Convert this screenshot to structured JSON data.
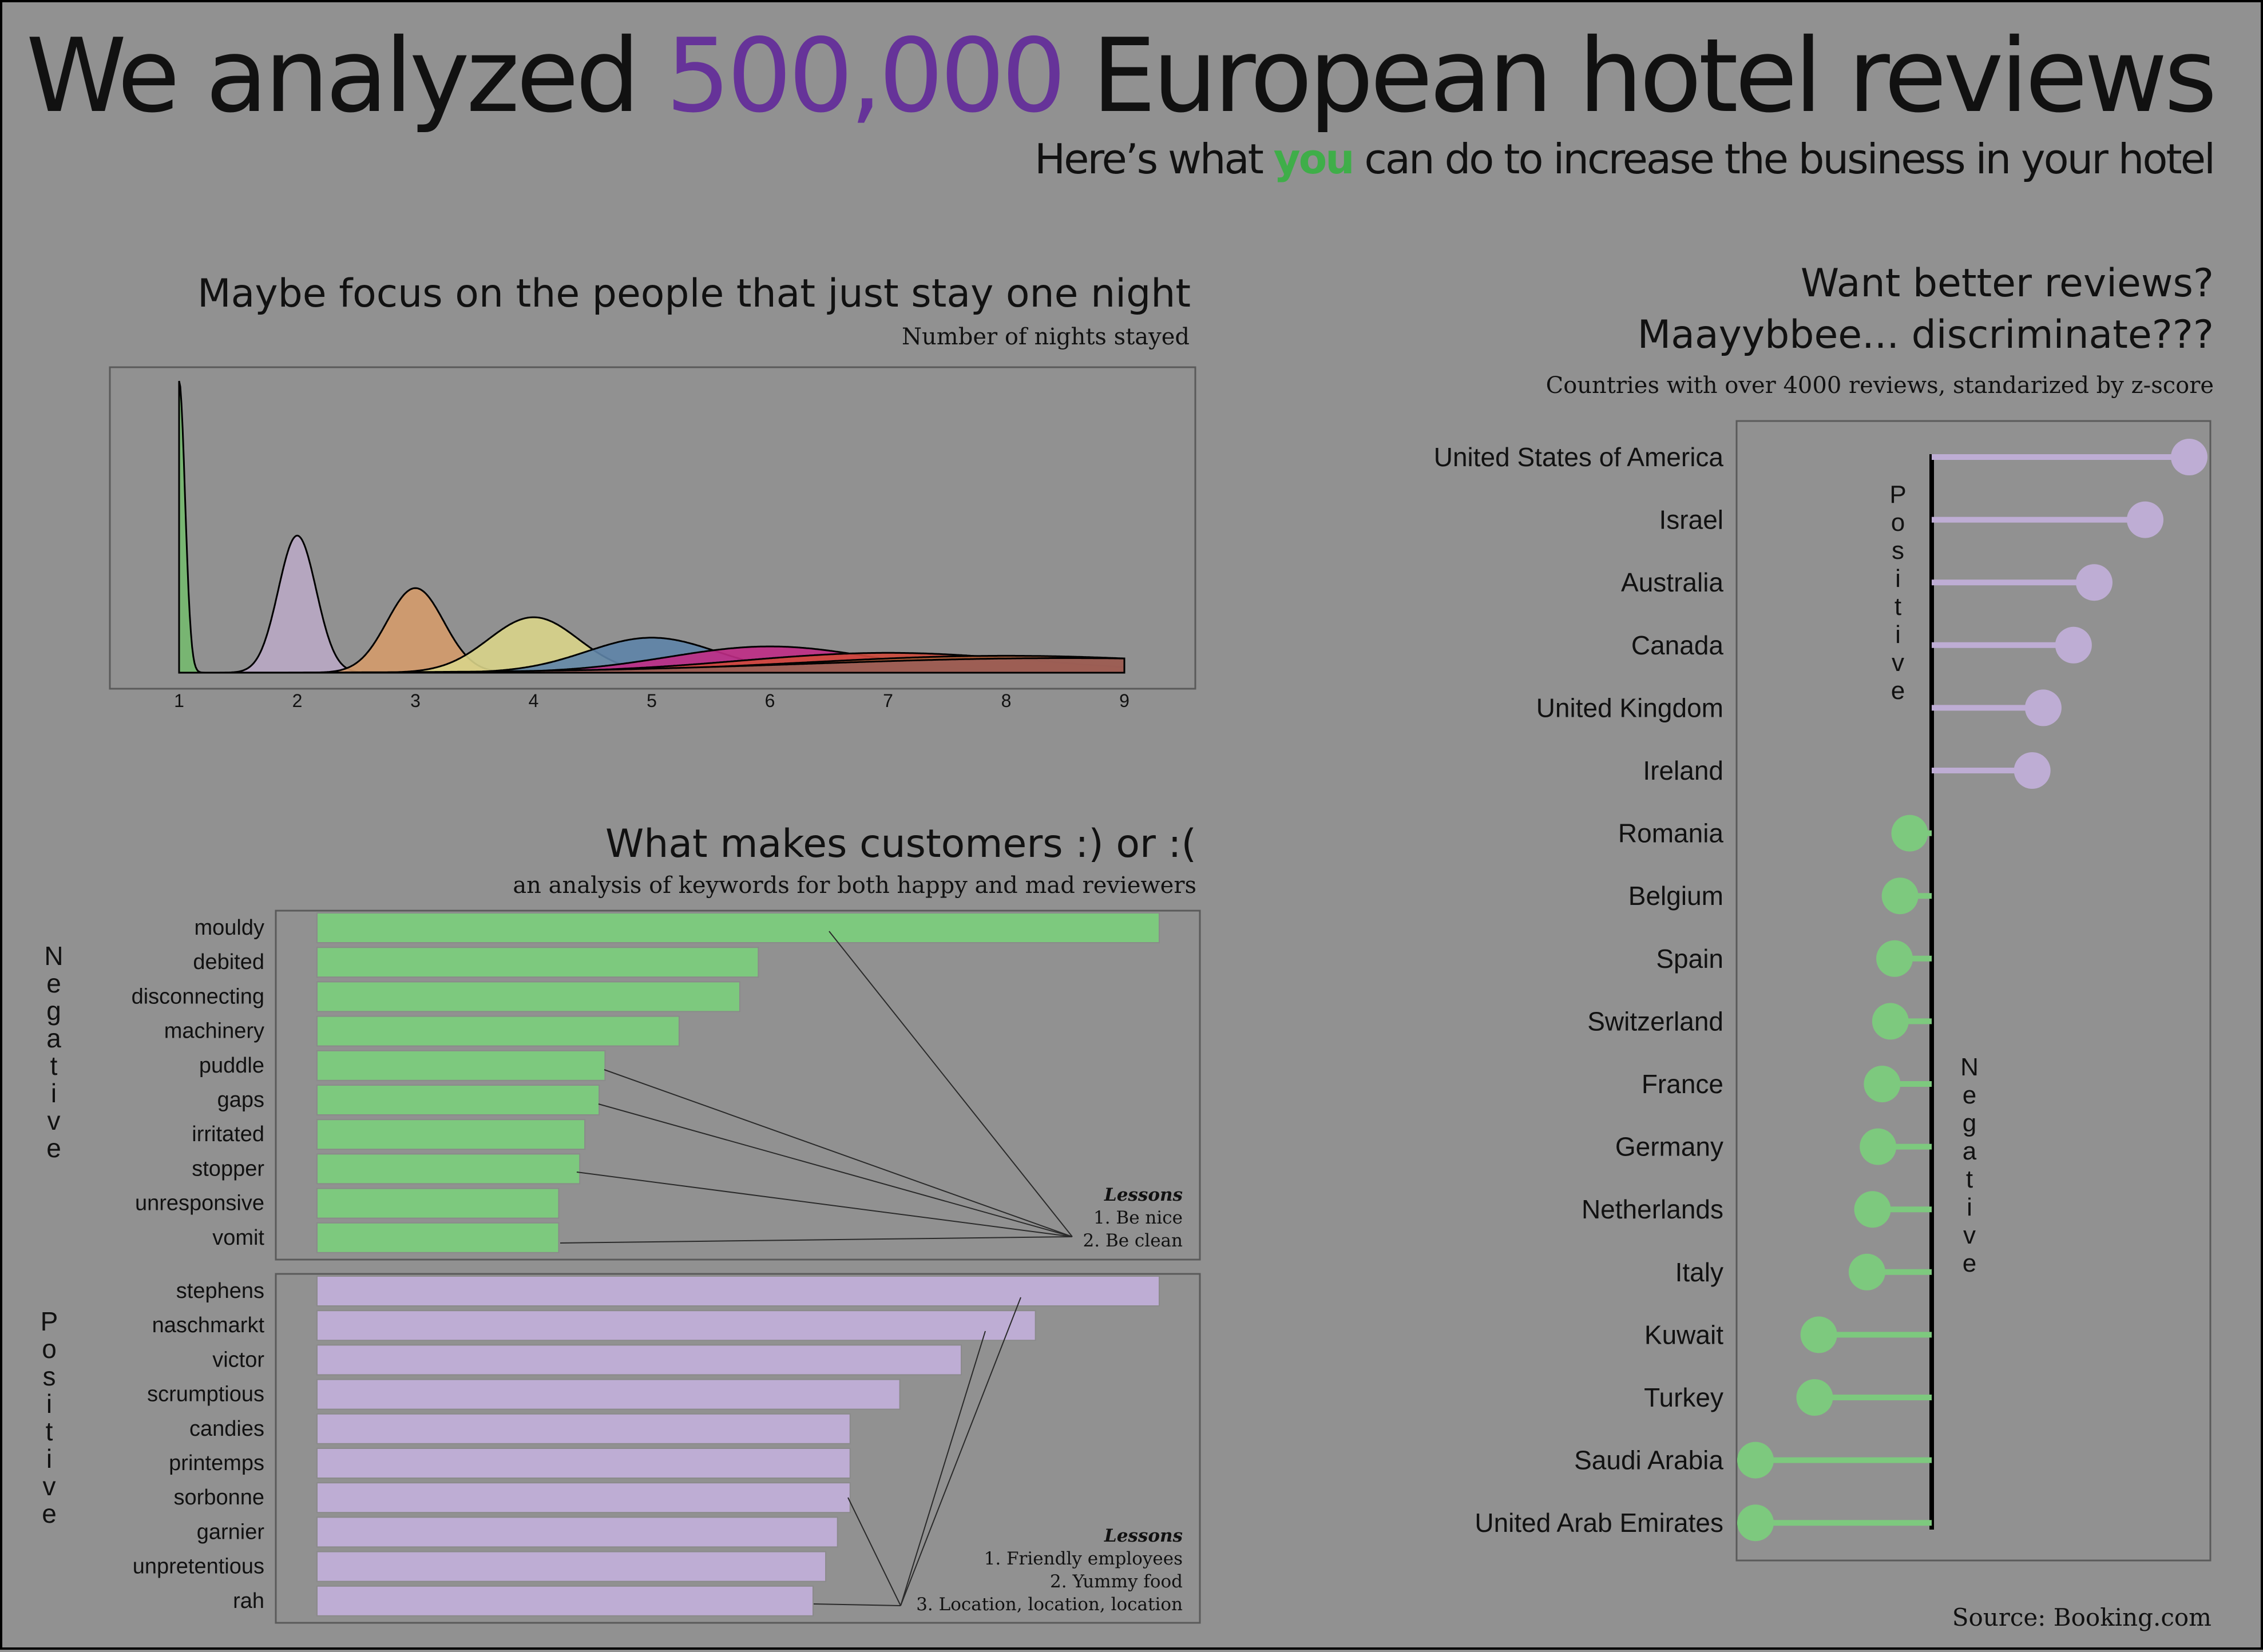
{
  "header": {
    "title_pre": "We analyzed ",
    "title_highlight": "500,000",
    "title_post": " European hotel reviews",
    "subtitle_pre": "Here’s what ",
    "subtitle_highlight": "you",
    "subtitle_post": " can do to increase the business in your hotel",
    "highlight_color": "#663399",
    "you_color": "#3fae49"
  },
  "nights": {
    "title": "Maybe focus on the people that just stay one night",
    "subtitle": "Number of nights stayed"
  },
  "keywords": {
    "title": "What makes customers :) or :(",
    "subtitle": "an analysis of keywords for both happy and mad reviewers",
    "negative_label": "Negative",
    "positive_label": "Positive",
    "negative_lessons_title": "Lessons",
    "negative_lessons": [
      "1. Be nice",
      "2. Be clean"
    ],
    "positive_lessons_title": "Lessons",
    "positive_lessons": [
      "1. Friendly employees",
      "2. Yummy food",
      "3. Location, location, location"
    ]
  },
  "countries": {
    "title_line1": "Want better reviews?",
    "title_line2": "Maayybbee... discriminate???",
    "subtitle": "Countries with over 4000 reviews, standarized by z-score",
    "positive_label": "Positive",
    "negative_label": "Negative"
  },
  "footer": {
    "source": "Source: Booking.com"
  },
  "chart_data": [
    {
      "id": "nights",
      "type": "area",
      "subtitle": "Number of nights stayed",
      "x_ticks": [
        1,
        2,
        3,
        4,
        5,
        6,
        7,
        8,
        9
      ],
      "xlim": [
        1,
        9
      ],
      "grid": false,
      "series": [
        {
          "x": 1,
          "mean": 1.0,
          "sd": 0.05,
          "peak": 1.0,
          "color": "#75b96f"
        },
        {
          "x": 2,
          "mean": 2.0,
          "sd": 0.16,
          "peak": 0.47,
          "color": "#b9a9c4"
        },
        {
          "x": 3,
          "mean": 3.0,
          "sd": 0.24,
          "peak": 0.29,
          "color": "#d49b6c"
        },
        {
          "x": 4,
          "mean": 4.0,
          "sd": 0.38,
          "peak": 0.19,
          "color": "#d9d48a"
        },
        {
          "x": 5,
          "mean": 5.0,
          "sd": 0.55,
          "peak": 0.12,
          "color": "#5e84a8"
        },
        {
          "x": 6,
          "mean": 6.0,
          "sd": 0.85,
          "peak": 0.09,
          "color": "#c02c86"
        },
        {
          "x": 7,
          "mean": 7.0,
          "sd": 1.25,
          "peak": 0.068,
          "color": "#cf4a3c"
        },
        {
          "x": 8,
          "mean": 8.0,
          "sd": 1.7,
          "peak": 0.058,
          "color": "#b0603a"
        },
        {
          "x": 9,
          "mean": 8.5,
          "sd": 2.2,
          "peak": 0.05,
          "color": "#9a5e58"
        }
      ]
    },
    {
      "id": "negative-keywords",
      "type": "bar",
      "orientation": "horizontal",
      "categories": [
        "mouldy",
        "debited",
        "disconnecting",
        "machinery",
        "puddle",
        "gaps",
        "irritated",
        "stopper",
        "unresponsive",
        "vomit"
      ],
      "values": [
        1.0,
        0.524,
        0.502,
        0.43,
        0.342,
        0.335,
        0.318,
        0.312,
        0.287,
        0.287
      ],
      "color": "#7dc97e",
      "xlim": [
        0,
        1.0
      ]
    },
    {
      "id": "positive-keywords",
      "type": "bar",
      "orientation": "horizontal",
      "categories": [
        "stephens",
        "naschmarkt",
        "victor",
        "scrumptious",
        "candies",
        "printemps",
        "sorbonne",
        "garnier",
        "unpretentious",
        "rah"
      ],
      "values": [
        1.0,
        0.853,
        0.765,
        0.692,
        0.633,
        0.633,
        0.633,
        0.618,
        0.604,
        0.589
      ],
      "color": "#beadd4",
      "xlim": [
        0,
        1.0
      ]
    },
    {
      "id": "country-zscores",
      "type": "lollipop",
      "categories": [
        "United States of America",
        "Israel",
        "Australia",
        "Canada",
        "United Kingdom",
        "Ireland",
        "Romania",
        "Belgium",
        "Spain",
        "Switzerland",
        "France",
        "Germany",
        "Netherlands",
        "Italy",
        "Kuwait",
        "Turkey",
        "Saudi Arabia",
        "United Arab Emirates"
      ],
      "values": [
        1.87,
        1.55,
        1.18,
        1.03,
        0.81,
        0.73,
        -0.16,
        -0.23,
        -0.27,
        -0.3,
        -0.36,
        -0.39,
        -0.43,
        -0.47,
        -0.82,
        -0.85,
        -1.28,
        -1.28
      ],
      "positive_color": "#beadd4",
      "negative_color": "#7dc97e",
      "xlim": [
        -1.4,
        2.0
      ]
    }
  ]
}
